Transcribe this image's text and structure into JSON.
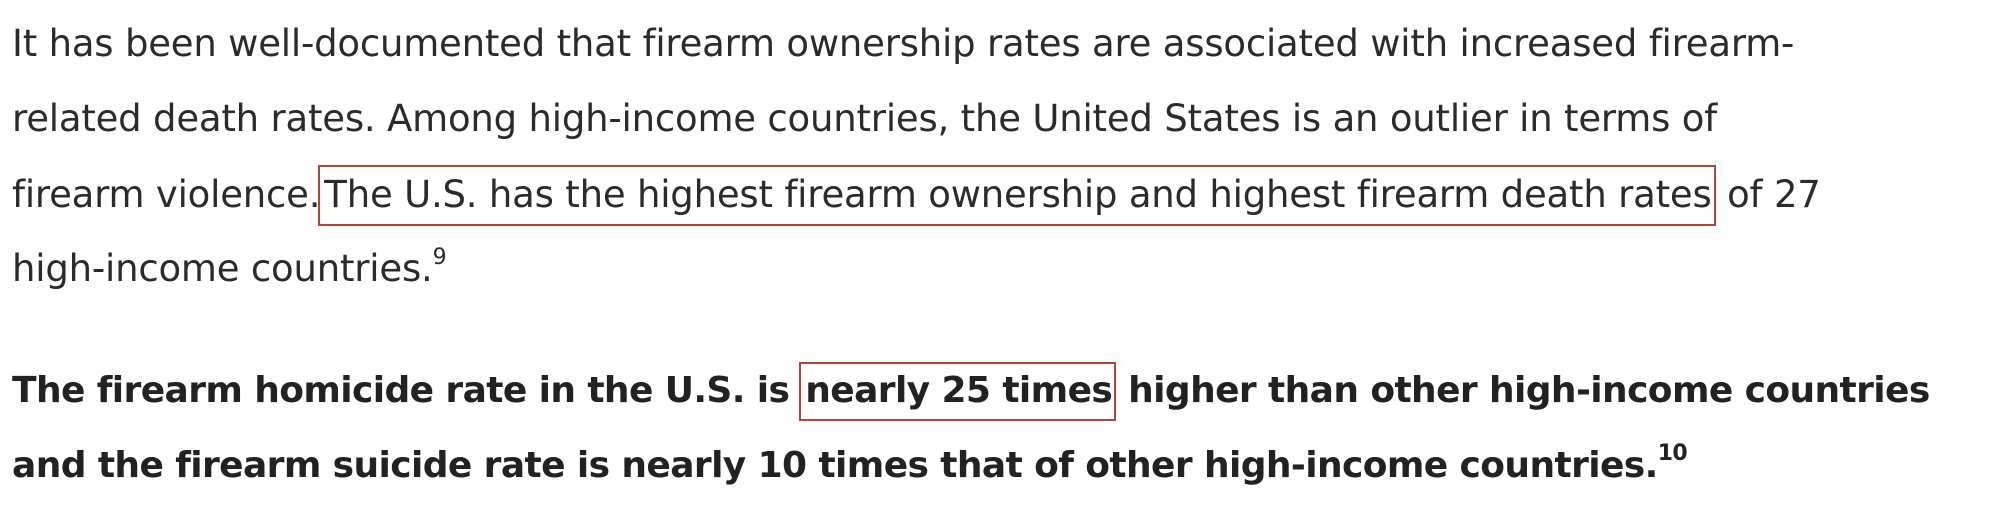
{
  "paragraph1": {
    "line1": "It has been well-documented that firearm ownership rates are associated with increased firearm-",
    "line2": "related death rates. Among high-income countries, the United States is an outlier in terms of",
    "line3_pre": "firearm violence.",
    "line3_highlight": "The U.S. has the highest firearm ownership and highest firearm death rates",
    "line3_post": " of 27",
    "line4": "high-income countries.",
    "footnote": "9"
  },
  "paragraph2": {
    "line1_pre": "The firearm homicide rate in the U.S. is ",
    "line1_highlight": "nearly 25 times",
    "line1_post": " higher than other high-income countries",
    "line2": "and the firearm suicide rate is nearly 10 times that of other high-income countries.",
    "footnote": "10"
  },
  "highlight_color": "#b5443a"
}
